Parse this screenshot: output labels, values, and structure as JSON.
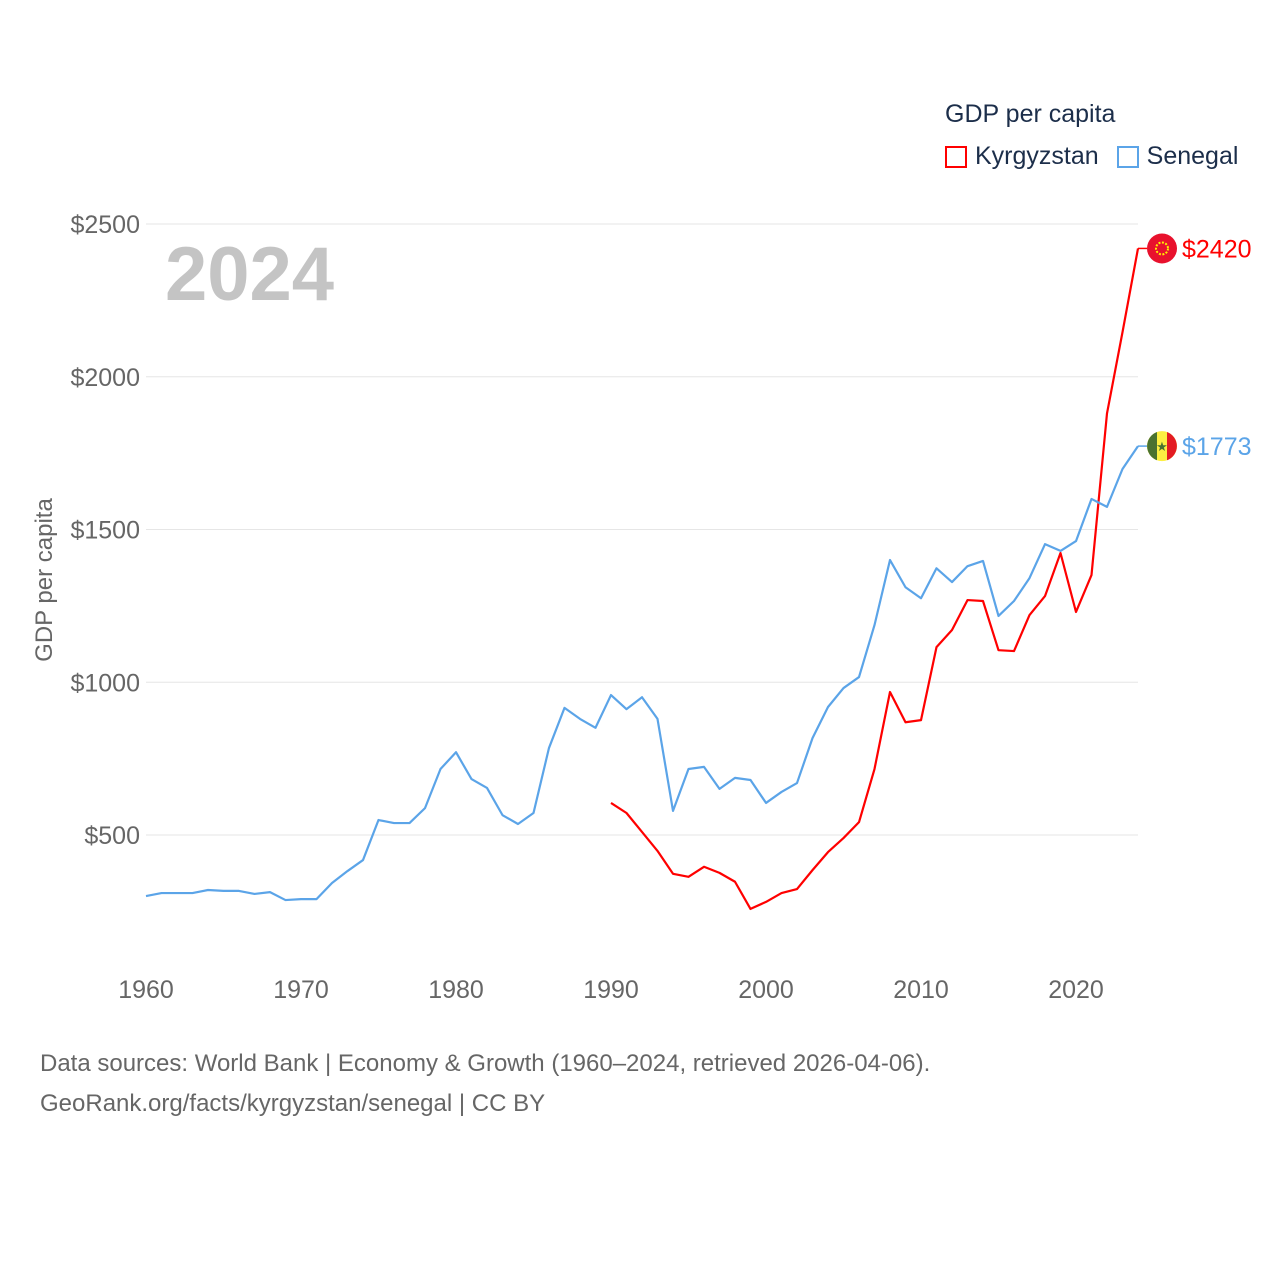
{
  "chart_data": {
    "type": "line",
    "title": "",
    "year_label": "2024",
    "ylabel": "GDP per capita",
    "xlabel": "",
    "xlim": [
      1960,
      2024
    ],
    "ylim": [
      0,
      2500
    ],
    "x_ticks": [
      1960,
      1970,
      1980,
      1990,
      2000,
      2010,
      2020
    ],
    "x_tick_labels": [
      "1960",
      "1970",
      "1980",
      "1990",
      "2000",
      "2010",
      "2020"
    ],
    "y_ticks": [
      500,
      1000,
      1500,
      2000,
      2500
    ],
    "y_tick_labels": [
      "$500",
      "$1000",
      "$1500",
      "$2000",
      "$2500"
    ],
    "grid": true,
    "legend": {
      "title": "GDP per capita",
      "placement": "top-right"
    },
    "series": [
      {
        "name": "Kyrgyzstan",
        "color": "#ff0000",
        "end_label": "$2420",
        "start_year": 1990,
        "values": [
          605,
          572,
          510,
          448,
          373,
          363,
          396,
          376,
          347,
          258,
          281,
          310,
          323,
          385,
          444,
          490,
          542,
          716,
          968,
          869,
          876,
          1115,
          1171,
          1269,
          1266,
          1105,
          1102,
          1220,
          1282,
          1423,
          1230,
          1351,
          1880,
          2146,
          2420
        ]
      },
      {
        "name": "Senegal",
        "color": "#5ba4e8",
        "end_label": "$1773",
        "start_year": 1960,
        "values": [
          300,
          310,
          310,
          310,
          320,
          317,
          317,
          307,
          313,
          287,
          290,
          290,
          343,
          382,
          418,
          549,
          539,
          539,
          588,
          716,
          771,
          683,
          654,
          565,
          536,
          572,
          785,
          916,
          880,
          851,
          958,
          912,
          951,
          880,
          579,
          716,
          723,
          651,
          687,
          680,
          605,
          641,
          670,
          817,
          919,
          981,
          1017,
          1187,
          1400,
          1311,
          1275,
          1373,
          1328,
          1380,
          1397,
          1217,
          1266,
          1341,
          1452,
          1430,
          1462,
          1600,
          1574,
          1698,
          1773
        ]
      }
    ]
  },
  "footer": {
    "line1": "Data sources: World Bank | Economy & Growth (1960–2024, retrieved 2026-04-06).",
    "line2": "GeoRank.org/facts/kyrgyzstan/senegal | CC BY"
  }
}
